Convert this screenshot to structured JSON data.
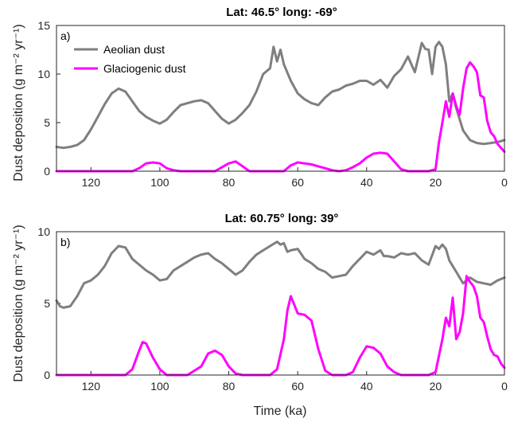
{
  "figure": {
    "shared_xlabel": "Time (ka)"
  },
  "legend": {
    "entries": [
      "Aeolian dust",
      "Glaciogenic dust"
    ]
  },
  "chart_data": [
    {
      "type": "line",
      "panel_label": "a)",
      "title": "Lat: 46.5° long: -69°",
      "xlabel": "",
      "ylabel": "Dust deposition (g m⁻² yr⁻¹)",
      "xlim": [
        130,
        0
      ],
      "ylim": [
        0,
        15
      ],
      "x_reversed": true,
      "xticks": [
        120,
        100,
        80,
        60,
        40,
        20,
        0
      ],
      "yticks": [
        0,
        5,
        10,
        15
      ],
      "grid": false,
      "legend_position": "top-left",
      "series": [
        {
          "name": "Aeolian dust",
          "color": "#7f7f7f",
          "x": [
            130,
            128,
            126,
            124,
            122,
            120,
            118,
            116,
            114,
            112,
            110,
            108,
            106,
            104,
            102,
            100,
            98,
            96,
            94,
            92,
            90,
            88,
            86,
            84,
            82,
            80,
            78,
            76,
            74,
            72,
            70,
            68,
            67,
            66,
            65,
            64,
            62,
            60,
            58,
            56,
            54,
            52,
            50,
            48,
            46,
            44,
            42,
            40,
            38,
            36,
            34,
            32,
            30,
            28,
            26,
            24,
            23,
            22,
            21,
            20,
            19,
            18,
            17,
            16,
            15,
            14,
            12,
            10,
            8,
            6,
            4,
            2,
            0
          ],
          "values": [
            2.5,
            2.4,
            2.5,
            2.7,
            3.2,
            4.3,
            5.6,
            6.9,
            8.0,
            8.5,
            8.2,
            7.2,
            6.2,
            5.6,
            5.2,
            4.9,
            5.3,
            6.1,
            6.8,
            7.0,
            7.2,
            7.3,
            7.0,
            6.2,
            5.4,
            4.9,
            5.3,
            6.0,
            6.8,
            8.2,
            10.0,
            10.6,
            12.8,
            11.3,
            12.5,
            11.0,
            9.3,
            8.0,
            7.4,
            7.0,
            6.8,
            7.6,
            8.2,
            8.4,
            8.8,
            9.0,
            9.3,
            9.3,
            8.9,
            9.4,
            8.6,
            9.8,
            10.5,
            11.8,
            10.2,
            13.2,
            12.6,
            12.5,
            10.0,
            12.8,
            13.3,
            12.8,
            11.0,
            7.2,
            8.0,
            6.5,
            4.2,
            3.2,
            2.9,
            2.8,
            2.9,
            3.0,
            3.2
          ]
        },
        {
          "name": "Glaciogenic dust",
          "color": "#ff00ff",
          "x": [
            130,
            128,
            126,
            124,
            122,
            120,
            118,
            116,
            114,
            112,
            110,
            108,
            106,
            104,
            102,
            100,
            98,
            96,
            94,
            92,
            90,
            88,
            86,
            84,
            82,
            80,
            78,
            76,
            74,
            72,
            70,
            68,
            66,
            64,
            62,
            60,
            58,
            56,
            54,
            52,
            50,
            48,
            46,
            44,
            42,
            40,
            38,
            36,
            34,
            32,
            30,
            28,
            26,
            24,
            22,
            20,
            19,
            18,
            17,
            16,
            15,
            14,
            13,
            12,
            11,
            10,
            9,
            8,
            7,
            6,
            5,
            4,
            3,
            2,
            1,
            0
          ],
          "values": [
            0,
            0,
            0,
            0,
            0,
            0,
            0,
            0,
            0,
            0,
            0,
            0,
            0.3,
            0.8,
            0.9,
            0.8,
            0.3,
            0.1,
            0,
            0,
            0,
            0,
            0,
            0,
            0.4,
            0.8,
            1.0,
            0.5,
            0,
            0,
            0,
            0,
            0,
            0,
            0.6,
            0.9,
            0.8,
            0.7,
            0.5,
            0.3,
            0.1,
            0,
            0.1,
            0.4,
            0.8,
            1.4,
            1.8,
            1.9,
            1.8,
            1.0,
            0.2,
            0,
            0,
            0,
            0,
            0.2,
            3.0,
            5.0,
            7.2,
            5.6,
            8.0,
            6.7,
            5.8,
            8.5,
            10.6,
            11.2,
            10.8,
            10.2,
            7.8,
            7.6,
            5.2,
            4.0,
            3.6,
            2.8,
            2.4,
            2.0
          ]
        }
      ]
    },
    {
      "type": "line",
      "panel_label": "b)",
      "title": "Lat: 60.75° long: 39°",
      "xlabel": "Time (ka)",
      "ylabel": "Dust deposition (g m⁻² yr⁻¹)",
      "xlim": [
        130,
        0
      ],
      "ylim": [
        0,
        10
      ],
      "x_reversed": true,
      "xticks": [
        120,
        100,
        80,
        60,
        40,
        20,
        0
      ],
      "yticks": [
        0,
        5,
        10
      ],
      "grid": false,
      "series": [
        {
          "name": "Aeolian dust",
          "color": "#7f7f7f",
          "x": [
            130,
            129,
            128,
            126,
            124,
            122,
            120,
            118,
            116,
            114,
            112,
            110,
            108,
            106,
            104,
            102,
            100,
            98,
            96,
            94,
            92,
            90,
            88,
            86,
            84,
            82,
            80,
            78,
            76,
            74,
            72,
            70,
            68,
            66,
            65,
            64,
            63,
            62,
            60,
            58,
            56,
            54,
            52,
            50,
            48,
            46,
            44,
            42,
            40,
            38,
            36,
            35,
            34,
            32,
            30,
            28,
            26,
            24,
            22,
            20,
            19,
            18,
            17,
            16,
            15,
            14,
            12,
            10,
            8,
            6,
            4,
            2,
            0
          ],
          "values": [
            5.2,
            4.8,
            4.7,
            4.8,
            5.5,
            6.4,
            6.6,
            7.0,
            7.6,
            8.5,
            9.0,
            8.9,
            8.1,
            7.7,
            7.3,
            7.0,
            6.6,
            6.7,
            7.3,
            7.6,
            7.9,
            8.2,
            8.4,
            8.5,
            8.1,
            7.8,
            7.4,
            7.0,
            7.3,
            7.9,
            8.4,
            8.7,
            9.0,
            9.3,
            9.1,
            9.2,
            8.6,
            8.7,
            8.8,
            8.1,
            7.8,
            7.4,
            7.2,
            6.8,
            6.9,
            7.0,
            7.6,
            8.1,
            8.6,
            8.4,
            8.7,
            8.3,
            8.3,
            8.2,
            8.5,
            8.4,
            8.5,
            8.0,
            7.7,
            9.0,
            8.8,
            9.1,
            8.8,
            8.0,
            7.6,
            7.2,
            6.4,
            6.8,
            6.5,
            6.4,
            6.3,
            6.6,
            6.8
          ]
        },
        {
          "name": "Glaciogenic dust",
          "color": "#ff00ff",
          "x": [
            130,
            128,
            126,
            124,
            122,
            120,
            118,
            116,
            114,
            112,
            110,
            108,
            106,
            105,
            104,
            102,
            100,
            98,
            96,
            94,
            92,
            90,
            88,
            86,
            84,
            82,
            80,
            78,
            76,
            74,
            72,
            70,
            68,
            66,
            64,
            63,
            62,
            60,
            58,
            56,
            54,
            52,
            50,
            48,
            46,
            44,
            42,
            40,
            38,
            36,
            34,
            32,
            30,
            28,
            26,
            24,
            22,
            20,
            18,
            17,
            16,
            15,
            14,
            13,
            12,
            11,
            10,
            9,
            8,
            7,
            6,
            5,
            4,
            3,
            2,
            1,
            0
          ],
          "values": [
            0,
            0,
            0,
            0,
            0,
            0,
            0,
            0,
            0,
            0,
            0,
            0.4,
            1.7,
            2.3,
            2.2,
            1.2,
            0.4,
            0,
            0,
            0,
            0,
            0.3,
            0.6,
            1.5,
            1.7,
            1.4,
            0.6,
            0.1,
            0,
            0,
            0,
            0,
            0,
            0.4,
            2.5,
            4.5,
            5.5,
            4.3,
            4.2,
            3.8,
            1.8,
            0.3,
            0,
            0,
            0,
            0.2,
            1.2,
            2.0,
            1.9,
            1.5,
            0.6,
            0.2,
            0,
            0,
            0,
            0,
            0,
            0.2,
            2.5,
            4.0,
            3.4,
            5.4,
            2.5,
            3.0,
            4.3,
            6.9,
            6.5,
            6.2,
            5.5,
            4.0,
            3.7,
            2.7,
            1.8,
            1.4,
            1.3,
            0.8,
            0.5
          ]
        }
      ]
    }
  ]
}
